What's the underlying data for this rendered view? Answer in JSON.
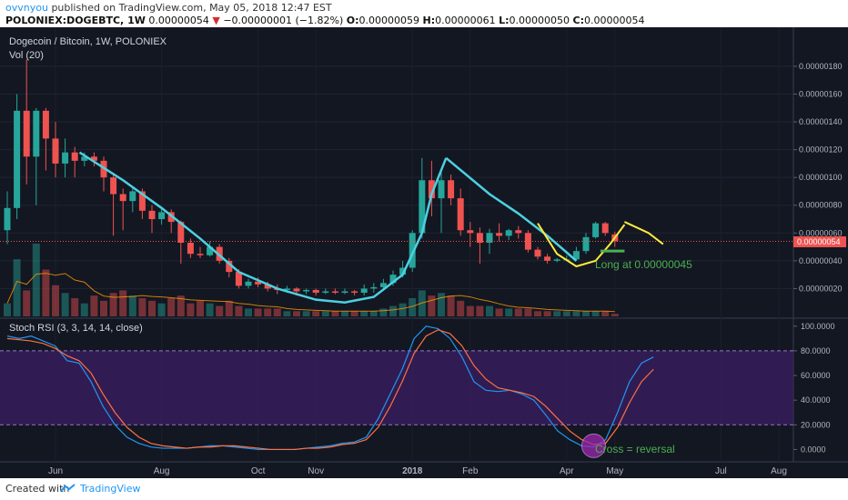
{
  "header": {
    "author": "ovvnyou",
    "published_text": "published on TradingView.com, May 05, 2018 12:47 EST",
    "symbol": "POLONIEX:DOGEBTC, 1W",
    "last": "0.00000054",
    "change": "−0.00000001 (−1.82%)",
    "o_label": "O:",
    "o_value": "0.00000059",
    "h_label": "H:",
    "h_value": "0.00000061",
    "l_label": "L:",
    "l_value": "0.00000050",
    "c_label": "C:",
    "c_value": "0.00000054"
  },
  "chart_title": "Dogecoin / Bitcoin, 1W, POLONIEX",
  "volume_label": "Vol (20)",
  "rsi_label": "Stoch RSI (3, 3, 14, 14, close)",
  "last_price_tag": "0.00000054",
  "annotations": {
    "long": "Long at 0.00000045",
    "cross": "Cross = reversal"
  },
  "footer": {
    "created_with": "Created with",
    "brand": "TradingView"
  },
  "colors": {
    "up": "#26a69a",
    "down": "#ef5350",
    "background": "#131722",
    "cup_line": "#4dd0e1",
    "yellow_line": "#ffeb3b",
    "rsi_k": "#2196f3",
    "rsi_d": "#ff7043",
    "rsi_band": "#3b1f63",
    "cross_marker": "#9c27b0"
  },
  "chart_data": [
    {
      "type": "candlestick",
      "title": "Dogecoin / Bitcoin, 1W, POLONIEX",
      "x_tick_labels": [
        "Jun",
        "Aug",
        "Oct",
        "Nov",
        "2018",
        "Feb",
        "Apr",
        "May",
        "Jul",
        "Aug"
      ],
      "y_tick_labels": [
        "0.00000020",
        "0.00000040",
        "0.00000060",
        "0.00000080",
        "0.00000100",
        "0.00000120",
        "0.00000140",
        "0.00000160",
        "0.00000180"
      ],
      "ylim": [
        0,
        1.95e-06
      ],
      "candles": [
        [
          6.2e-07,
          7.8e-07,
          9e-07,
          5.2e-07
        ],
        [
          7.8e-07,
          1.48e-06,
          1.6e-06,
          7e-07
        ],
        [
          1.48e-06,
          1.15e-06,
          1.85e-06,
          9.5e-07
        ],
        [
          1.15e-06,
          1.48e-06,
          1.5e-06,
          8e-07
        ],
        [
          1.48e-06,
          1.28e-06,
          1.5e-06,
          1.05e-06
        ],
        [
          1.28e-06,
          1.1e-06,
          1.4e-06,
          1e-06
        ],
        [
          1.1e-06,
          1.18e-06,
          1.28e-06,
          1e-06
        ],
        [
          1.18e-06,
          1.12e-06,
          1.22e-06,
          1e-06
        ],
        [
          1.12e-06,
          1.15e-06,
          1.18e-06,
          1.08e-06
        ],
        [
          1.15e-06,
          1.12e-06,
          1.18e-06,
          1.08e-06
        ],
        [
          1.12e-06,
          1e-06,
          1.15e-06,
          9e-07
        ],
        [
          1e-06,
          8.8e-07,
          1.02e-06,
          5.8e-07
        ],
        [
          8.8e-07,
          8.3e-07,
          9.2e-07,
          6.2e-07
        ],
        [
          8.3e-07,
          9e-07,
          9.3e-07,
          7.5e-07
        ],
        [
          9e-07,
          7.6e-07,
          9.2e-07,
          7e-07
        ],
        [
          7.6e-07,
          7e-07,
          8e-07,
          6e-07
        ],
        [
          7e-07,
          7.5e-07,
          7.8e-07,
          6.6e-07
        ],
        [
          7.5e-07,
          6.8e-07,
          7.7e-07,
          6e-07
        ],
        [
          6.8e-07,
          5.3e-07,
          6.9e-07,
          3.8e-07
        ],
        [
          5.3e-07,
          4.5e-07,
          5.6e-07,
          4.2e-07
        ],
        [
          4.5e-07,
          4.4e-07,
          5e-07,
          4.2e-07
        ],
        [
          4.4e-07,
          5e-07,
          5.4e-07,
          4.3e-07
        ],
        [
          5e-07,
          4e-07,
          5.2e-07,
          3.8e-07
        ],
        [
          4e-07,
          3.2e-07,
          4.2e-07,
          2.8e-07
        ],
        [
          3.2e-07,
          2.2e-07,
          3.4e-07,
          2e-07
        ],
        [
          2.2e-07,
          2.5e-07,
          2.7e-07,
          2e-07
        ],
        [
          2.5e-07,
          2.3e-07,
          2.8e-07,
          2.1e-07
        ],
        [
          2.3e-07,
          2e-07,
          2.5e-07,
          1.8e-07
        ],
        [
          2e-07,
          1.9e-07,
          2.3e-07,
          1.6e-07
        ],
        [
          1.9e-07,
          2e-07,
          2.2e-07,
          1.7e-07
        ],
        [
          2e-07,
          1.8e-07,
          2.1e-07,
          1.5e-07
        ],
        [
          1.8e-07,
          1.9e-07,
          2e-07,
          1.6e-07
        ],
        [
          1.9e-07,
          1.7e-07,
          2e-07,
          1.5e-07
        ],
        [
          1.7e-07,
          1.8e-07,
          2e-07,
          1.6e-07
        ],
        [
          1.8e-07,
          1.7e-07,
          2e-07,
          1.6e-07
        ],
        [
          1.7e-07,
          1.8e-07,
          2e-07,
          1.6e-07
        ],
        [
          1.8e-07,
          1.7e-07,
          1.9e-07,
          1.5e-07
        ],
        [
          1.7e-07,
          2e-07,
          2.3e-07,
          1.5e-07
        ],
        [
          2e-07,
          2.1e-07,
          2.4e-07,
          1.7e-07
        ],
        [
          2.1e-07,
          2.4e-07,
          2.7e-07,
          1.9e-07
        ],
        [
          2.4e-07,
          3e-07,
          3.3e-07,
          2.2e-07
        ],
        [
          3e-07,
          3.5e-07,
          4e-07,
          2.8e-07
        ],
        [
          3.5e-07,
          6e-07,
          6.2e-07,
          3.2e-07
        ],
        [
          6e-07,
          9.8e-07,
          1.14e-06,
          5.6e-07
        ],
        [
          9.8e-07,
          8.5e-07,
          1.12e-06,
          7.2e-07
        ],
        [
          8.5e-07,
          9.8e-07,
          1.05e-06,
          6e-07
        ],
        [
          9.8e-07,
          8.5e-07,
          1.02e-06,
          8e-07
        ],
        [
          8.5e-07,
          6.2e-07,
          9.2e-07,
          5.8e-07
        ],
        [
          6.2e-07,
          6e-07,
          6.8e-07,
          5e-07
        ],
        [
          6e-07,
          5.3e-07,
          6.4e-07,
          3.8e-07
        ],
        [
          5.3e-07,
          6e-07,
          6.3e-07,
          4.5e-07
        ],
        [
          6e-07,
          5.8e-07,
          6.7e-07,
          5.4e-07
        ],
        [
          5.8e-07,
          6.2e-07,
          6.3e-07,
          5.5e-07
        ],
        [
          6.2e-07,
          6e-07,
          6.5e-07,
          5.6e-07
        ],
        [
          6e-07,
          4.8e-07,
          6.2e-07,
          4.6e-07
        ],
        [
          4.8e-07,
          4.3e-07,
          5e-07,
          4.1e-07
        ],
        [
          4.3e-07,
          4e-07,
          4.5e-07,
          3.8e-07
        ],
        [
          4e-07,
          4.1e-07,
          4.2e-07,
          3.9e-07
        ],
        [
          4.1e-07,
          4.1e-07,
          4.4e-07,
          4e-07
        ],
        [
          4.1e-07,
          4.7e-07,
          5e-07,
          4e-07
        ],
        [
          4.7e-07,
          5.7e-07,
          6e-07,
          4.5e-07
        ],
        [
          5.7e-07,
          6.7e-07,
          6.8e-07,
          5.6e-07
        ],
        [
          6.7e-07,
          6e-07,
          6.8e-07,
          5.8e-07
        ],
        [
          5.9e-07,
          5.4e-07,
          6.1e-07,
          5e-07
        ]
      ]
    },
    {
      "type": "bar",
      "title": "Vol (20)",
      "values": [
        5,
        22,
        10,
        28,
        18,
        12,
        9,
        7,
        5,
        8,
        6,
        9,
        10,
        8,
        7,
        6,
        5,
        7,
        8,
        5,
        6,
        5,
        4,
        6,
        4,
        3,
        3,
        3,
        3,
        2,
        2,
        2,
        2,
        2,
        2,
        2,
        2,
        2,
        2,
        3,
        4,
        5,
        7,
        10,
        8,
        9,
        8,
        6,
        4,
        4,
        4,
        3,
        3,
        3,
        3,
        2,
        2,
        2,
        2,
        2,
        2,
        2,
        2,
        1
      ]
    },
    {
      "type": "line",
      "title": "Stoch RSI (3, 3, 14, 14, close)",
      "y_tick_labels": [
        "0.0000",
        "20.0000",
        "40.0000",
        "60.0000",
        "80.0000",
        "100.0000"
      ],
      "ylim": [
        -10,
        105
      ],
      "x_tick_labels": [
        "Jun",
        "Aug",
        "Oct",
        "Nov",
        "2018",
        "Feb",
        "Apr",
        "May",
        "Jul",
        "Aug"
      ],
      "series": [
        {
          "values": [
            92,
            90,
            92,
            88,
            84,
            72,
            70,
            55,
            35,
            20,
            10,
            5,
            2,
            1,
            1,
            1,
            2,
            3,
            3,
            2,
            1,
            0,
            0,
            0,
            0,
            1,
            2,
            3,
            5,
            6,
            10,
            25,
            45,
            65,
            90,
            100,
            98,
            90,
            75,
            55,
            48,
            47,
            48,
            45,
            40,
            28,
            15,
            8,
            3,
            2,
            8,
            30,
            55,
            70,
            75
          ]
        },
        {
          "values": [
            90,
            89,
            88,
            86,
            82,
            76,
            72,
            62,
            45,
            30,
            18,
            10,
            5,
            3,
            2,
            1,
            2,
            2,
            3,
            3,
            2,
            1,
            0,
            0,
            0,
            1,
            1,
            2,
            4,
            5,
            8,
            18,
            35,
            55,
            78,
            92,
            97,
            94,
            84,
            68,
            57,
            50,
            48,
            46,
            43,
            35,
            25,
            15,
            8,
            4,
            5,
            18,
            38,
            55,
            65
          ]
        }
      ]
    }
  ]
}
